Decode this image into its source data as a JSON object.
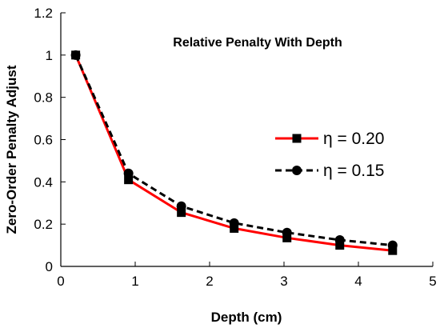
{
  "chart_data": {
    "type": "line",
    "title": "Relative Penalty With Depth",
    "xlabel": "Depth (cm)",
    "ylabel": "Zero-Order Penalty Adjust",
    "xlim": [
      0,
      5
    ],
    "ylim": [
      0,
      1.2
    ],
    "xticks": [
      0,
      1,
      2,
      3,
      4,
      5
    ],
    "yticks": [
      0,
      0.2,
      0.4,
      0.6,
      0.8,
      1,
      1.2
    ],
    "grid": false,
    "legend_position": "right",
    "series": [
      {
        "name": "η = 0.20",
        "color": "#ff0000",
        "marker_color": "#000000",
        "marker": "square",
        "line_style": "solid",
        "x": [
          0.2,
          0.91,
          1.62,
          2.33,
          3.04,
          3.75,
          4.46
        ],
        "y": [
          1.0,
          0.41,
          0.255,
          0.18,
          0.135,
          0.1,
          0.075
        ]
      },
      {
        "name": "η = 0.15",
        "color": "#000000",
        "marker_color": "#000000",
        "marker": "circle",
        "line_style": "dashed",
        "x": [
          0.2,
          0.91,
          1.62,
          2.33,
          3.04,
          3.75,
          4.46
        ],
        "y": [
          1.0,
          0.44,
          0.285,
          0.205,
          0.16,
          0.125,
          0.1
        ]
      }
    ]
  }
}
